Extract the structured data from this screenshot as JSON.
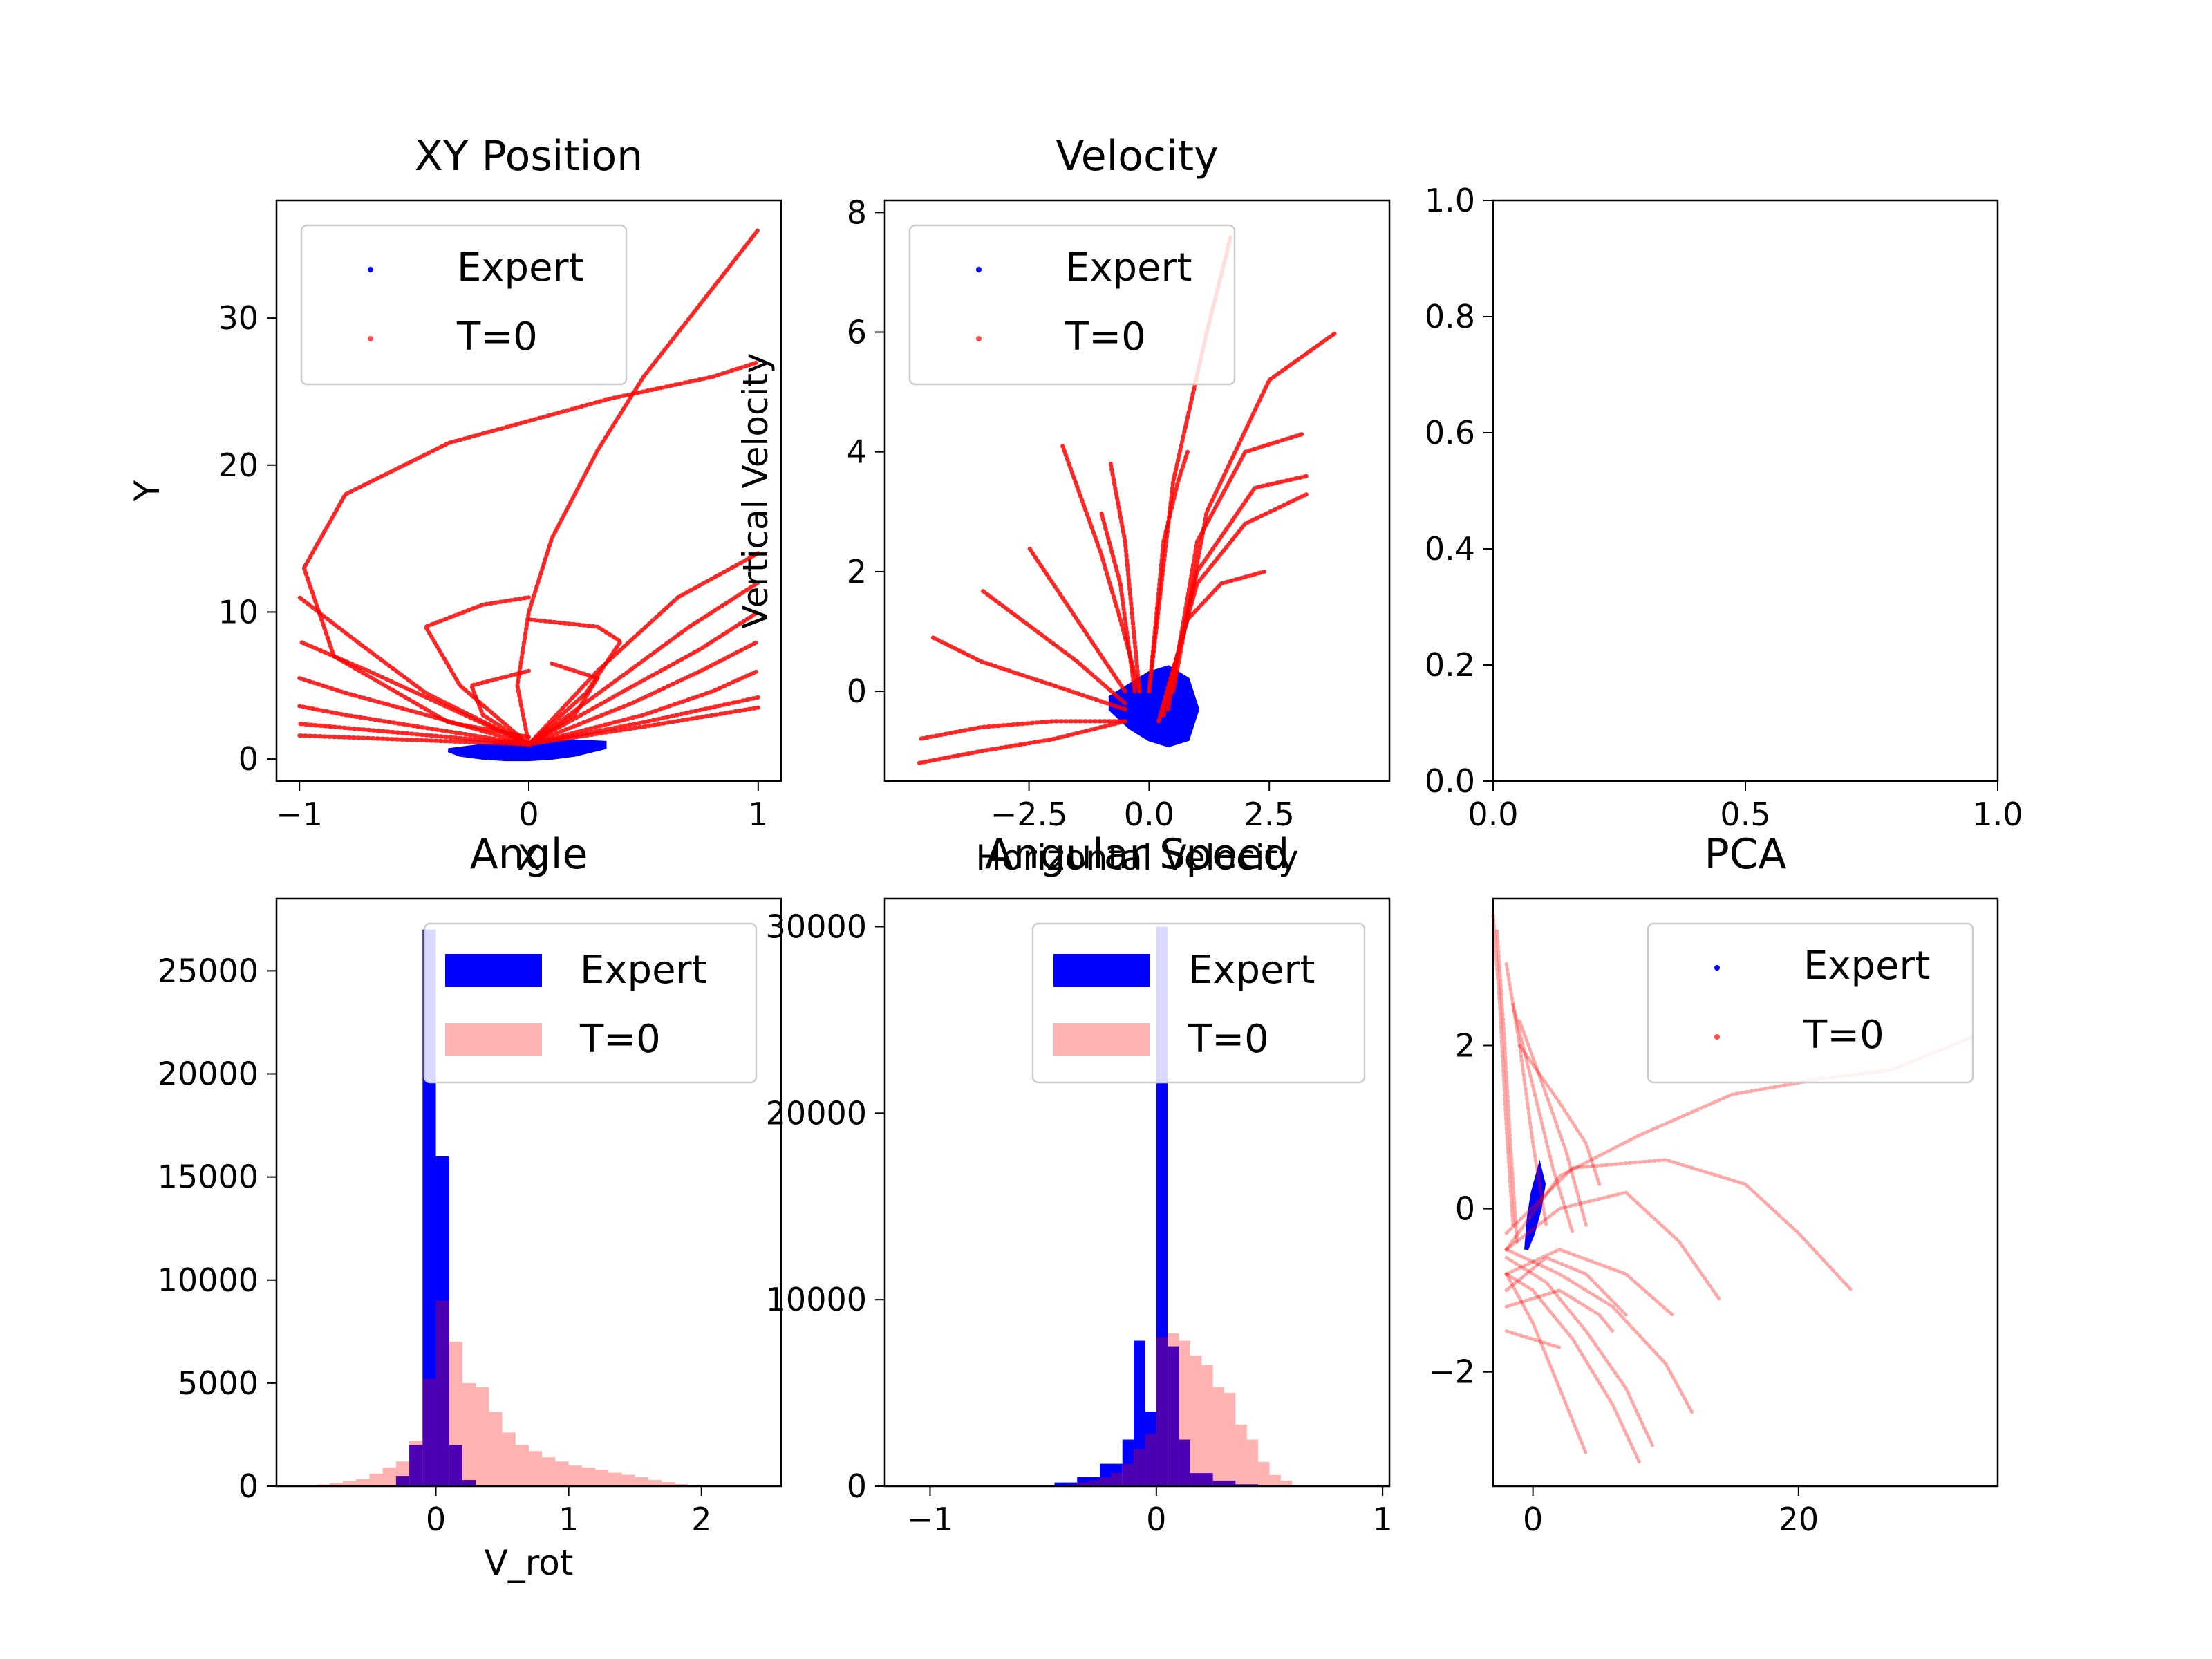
{
  "colors": {
    "expert": "#0000ff",
    "t0": "#ff0000",
    "t0_hist": "#ffb3b3",
    "overlap": "#5500aa"
  },
  "chart_data": [
    {
      "type": "scatter",
      "title": "XY Position",
      "xlabel": "X",
      "ylabel": "Y",
      "xlim": [
        -1.1,
        1.1
      ],
      "ylim": [
        -1.5,
        38
      ],
      "xticks": [
        -1,
        0,
        1
      ],
      "xtick_labels": [
        "−1",
        "0",
        "1"
      ],
      "yticks": [
        0,
        10,
        20,
        30
      ],
      "yticks_labels": [
        "0",
        "10",
        "20",
        "30"
      ],
      "legend": {
        "position": "upper-left",
        "entries": [
          "Expert",
          "T=0"
        ]
      },
      "expert": {
        "x": [
          -0.3,
          -0.2,
          -0.1,
          0,
          0.1,
          0.2,
          0.33,
          0.33,
          0.2,
          0,
          -0.2,
          -0.35
        ],
        "y": [
          0.3,
          0.1,
          0,
          0,
          0.1,
          0.3,
          0.8,
          1.1,
          1.2,
          1,
          0.9,
          0.6
        ]
      },
      "t0_curves": [
        {
          "x": [
            0,
            -0.35,
            -0.85,
            -0.98,
            -0.8,
            -0.35,
            0,
            0.35,
            0.8,
            1
          ],
          "y": [
            1.5,
            2.5,
            7,
            13,
            18,
            21.5,
            23,
            24.5,
            26,
            27
          ]
        },
        {
          "x": [
            0,
            -0.05,
            0,
            0.1,
            0.3,
            0.5,
            0.8,
            1
          ],
          "y": [
            1,
            5,
            10,
            15,
            21,
            26,
            32,
            36
          ]
        },
        {
          "x": [
            0,
            -0.45,
            -0.75,
            -1
          ],
          "y": [
            1,
            4.5,
            8,
            11
          ]
        },
        {
          "x": [
            0,
            -0.35,
            -0.7,
            -1
          ],
          "y": [
            1,
            3.5,
            6,
            8
          ]
        },
        {
          "x": [
            0,
            -0.4,
            -0.8,
            -1
          ],
          "y": [
            1,
            2.8,
            4.5,
            5.5
          ]
        },
        {
          "x": [
            0,
            -0.4,
            -0.8,
            -1
          ],
          "y": [
            1,
            2,
            3,
            3.6
          ]
        },
        {
          "x": [
            0,
            -0.5,
            -1
          ],
          "y": [
            1,
            1.7,
            2.4
          ]
        },
        {
          "x": [
            0,
            -0.5,
            -1
          ],
          "y": [
            1,
            1.3,
            1.6
          ]
        },
        {
          "x": [
            0,
            0.3,
            0.65,
            1
          ],
          "y": [
            1,
            6,
            11,
            14
          ]
        },
        {
          "x": [
            0,
            0.35,
            0.7,
            1
          ],
          "y": [
            1,
            5,
            9,
            12
          ]
        },
        {
          "x": [
            0,
            0.4,
            0.75,
            1
          ],
          "y": [
            1,
            4.5,
            7.5,
            10
          ]
        },
        {
          "x": [
            0,
            0.45,
            0.75,
            1
          ],
          "y": [
            1,
            3.8,
            6,
            8
          ]
        },
        {
          "x": [
            0,
            0.5,
            0.8,
            1
          ],
          "y": [
            1,
            3,
            4.6,
            6
          ]
        },
        {
          "x": [
            0,
            0.5,
            1
          ],
          "y": [
            1,
            2.5,
            4.2
          ]
        },
        {
          "x": [
            0,
            0.5,
            1
          ],
          "y": [
            1,
            2.2,
            3.5
          ]
        },
        {
          "x": [
            0,
            -0.3,
            -0.45,
            -0.2,
            0
          ],
          "y": [
            1,
            5,
            9,
            10.5,
            11
          ]
        },
        {
          "x": [
            0,
            0.25,
            0.4,
            0.3,
            0
          ],
          "y": [
            1,
            4.5,
            8,
            9,
            9.5
          ]
        },
        {
          "x": [
            0,
            -0.2,
            -0.25,
            0
          ],
          "y": [
            1,
            3,
            5,
            6
          ]
        },
        {
          "x": [
            0,
            0.2,
            0.3,
            0.1
          ],
          "y": [
            1,
            3,
            5.5,
            6.5
          ]
        }
      ]
    },
    {
      "type": "scatter",
      "title": "Velocity",
      "xlabel": "Horizontal Velocity",
      "ylabel": "Vertical Velocity",
      "xlim": [
        -5.5,
        5
      ],
      "ylim": [
        -1.5,
        8.2
      ],
      "xticks": [
        -2.5,
        0,
        2.5
      ],
      "xtick_labels": [
        "−2.5",
        "0.0",
        "2.5"
      ],
      "yticks": [
        0,
        2,
        4,
        6,
        8
      ],
      "yticks_labels": [
        "0",
        "2",
        "4",
        "6",
        "8"
      ],
      "legend": {
        "position": "upper-left",
        "entries": [
          "Expert",
          "T=0"
        ]
      },
      "expert": {
        "x": [
          -0.8,
          -0.4,
          0,
          0.4,
          0.8,
          1,
          0.8,
          0.4,
          0,
          -0.4,
          -0.8
        ],
        "y": [
          -0.3,
          -0.6,
          -0.8,
          -0.9,
          -0.8,
          -0.3,
          0.2,
          0.4,
          0.3,
          0.1,
          -0.1
        ]
      },
      "t0_curves": [
        {
          "x": [
            0,
            0.5,
            1.2,
            1.7
          ],
          "y": [
            0,
            3.5,
            6,
            7.6
          ]
        },
        {
          "x": [
            0.5,
            1.2,
            2.5,
            3.9
          ],
          "y": [
            0,
            3,
            5.2,
            6
          ]
        },
        {
          "x": [
            0.4,
            1,
            2,
            3.2
          ],
          "y": [
            -0.3,
            2.5,
            4,
            4.3
          ]
        },
        {
          "x": [
            0.3,
            1,
            2.2,
            3.3
          ],
          "y": [
            -0.4,
            2,
            3.4,
            3.6
          ]
        },
        {
          "x": [
            0.2,
            1,
            2,
            3.3
          ],
          "y": [
            -0.5,
            1.8,
            2.8,
            3.3
          ]
        },
        {
          "x": [
            0.2,
            0.8,
            1.5,
            2.4
          ],
          "y": [
            -0.5,
            1.2,
            1.8,
            2
          ]
        },
        {
          "x": [
            0,
            0.3,
            0.6,
            0.8
          ],
          "y": [
            0,
            2.5,
            3.5,
            4
          ]
        },
        {
          "x": [
            -0.2,
            -0.6,
            -1,
            -1.4,
            -1.8
          ],
          "y": [
            0,
            1.2,
            2.3,
            3.2,
            4.1
          ]
        },
        {
          "x": [
            -0.5,
            -1.5,
            -2.5
          ],
          "y": [
            0,
            1.2,
            2.4
          ]
        },
        {
          "x": [
            -0.5,
            -1.5,
            -2.5,
            -3.5
          ],
          "y": [
            -0.2,
            0.5,
            1.1,
            1.7
          ]
        },
        {
          "x": [
            -0.5,
            -2,
            -3.5,
            -4.5
          ],
          "y": [
            -0.3,
            0.1,
            0.5,
            0.9
          ]
        },
        {
          "x": [
            -0.5,
            -2,
            -3.5,
            -4.8
          ],
          "y": [
            -0.5,
            -0.5,
            -0.6,
            -0.8
          ]
        },
        {
          "x": [
            -0.5,
            -2,
            -3.5,
            -4.8
          ],
          "y": [
            -0.5,
            -0.8,
            -1,
            -1.2
          ]
        },
        {
          "x": [
            -0.2,
            -0.5,
            -0.8
          ],
          "y": [
            0,
            2.5,
            3.8
          ]
        },
        {
          "x": [
            -0.3,
            -0.6,
            -1
          ],
          "y": [
            0,
            1.8,
            3
          ]
        }
      ]
    },
    {
      "type": "scatter",
      "title": "",
      "xlim": [
        0,
        1
      ],
      "ylim": [
        0,
        1
      ],
      "xticks": [
        0,
        0.5,
        1
      ],
      "xtick_labels": [
        "0.0",
        "0.5",
        "1.0"
      ],
      "yticks": [
        0,
        0.2,
        0.4,
        0.6,
        0.8,
        1
      ],
      "yticks_labels": [
        "0.0",
        "0.2",
        "0.4",
        "0.6",
        "0.8",
        "1.0"
      ]
    },
    {
      "type": "bar",
      "title": "Angle",
      "xlabel": "V_rot",
      "xlim": [
        -1.2,
        2.6
      ],
      "ylim": [
        0,
        28500
      ],
      "xticks": [
        0,
        1,
        2
      ],
      "xtick_labels": [
        "0",
        "1",
        "2"
      ],
      "yticks": [
        0,
        5000,
        10000,
        15000,
        20000,
        25000
      ],
      "yticks_labels": [
        "0",
        "5000",
        "10000",
        "15000",
        "20000",
        "25000"
      ],
      "legend": {
        "position": "upper-right",
        "entries": [
          "Expert",
          "T=0"
        ]
      },
      "expert_hist": {
        "edges": [
          -0.3,
          -0.2,
          -0.1,
          0,
          0.1,
          0.2,
          0.3
        ],
        "counts": [
          500,
          2000,
          27000,
          16000,
          2000,
          300
        ]
      },
      "t0_hist": {
        "edges": [
          -1,
          -0.9,
          -0.8,
          -0.7,
          -0.6,
          -0.5,
          -0.4,
          -0.3,
          -0.2,
          -0.1,
          0,
          0.1,
          0.2,
          0.3,
          0.4,
          0.5,
          0.6,
          0.7,
          0.8,
          0.9,
          1,
          1.1,
          1.2,
          1.3,
          1.4,
          1.5,
          1.6,
          1.7,
          1.8,
          1.9,
          2
        ],
        "counts": [
          30,
          80,
          150,
          250,
          350,
          600,
          900,
          1200,
          2200,
          5200,
          9000,
          7000,
          5000,
          4800,
          3600,
          2600,
          2000,
          1700,
          1400,
          1200,
          1000,
          900,
          800,
          650,
          550,
          450,
          300,
          200,
          100,
          40
        ]
      }
    },
    {
      "type": "bar",
      "title": "Angular Speed",
      "xlim": [
        -1.2,
        1.03
      ],
      "ylim": [
        0,
        31500
      ],
      "xticks": [
        -1,
        0,
        1
      ],
      "xtick_labels": [
        "−1",
        "0",
        "1"
      ],
      "yticks": [
        0,
        10000,
        20000,
        30000
      ],
      "yticks_labels": [
        "0",
        "10000",
        "20000",
        "30000"
      ],
      "legend": {
        "position": "upper-right",
        "entries": [
          "Expert",
          "T=0"
        ]
      },
      "expert_hist": {
        "edges": [
          -0.45,
          -0.35,
          -0.25,
          -0.15,
          -0.1,
          -0.05,
          0,
          0.05,
          0.1,
          0.15,
          0.25,
          0.35,
          0.45
        ],
        "counts": [
          200,
          500,
          1200,
          2500,
          7800,
          4000,
          30000,
          7500,
          2500,
          700,
          300,
          100
        ]
      },
      "t0_hist": {
        "edges": [
          -0.4,
          -0.35,
          -0.3,
          -0.25,
          -0.2,
          -0.15,
          -0.1,
          -0.05,
          0,
          0.05,
          0.1,
          0.15,
          0.2,
          0.25,
          0.3,
          0.35,
          0.4,
          0.45,
          0.5,
          0.55,
          0.6
        ],
        "counts": [
          100,
          200,
          300,
          500,
          700,
          1200,
          2000,
          2800,
          8000,
          8200,
          7800,
          7000,
          6500,
          5300,
          5000,
          3300,
          2500,
          1300,
          600,
          300
        ]
      }
    },
    {
      "type": "scatter",
      "title": "PCA",
      "xlim": [
        -3,
        35
      ],
      "ylim": [
        -3.4,
        3.8
      ],
      "xticks": [
        0,
        20
      ],
      "xtick_labels": [
        "0",
        "20"
      ],
      "yticks": [
        -2,
        0,
        2
      ],
      "yticks_labels": [
        "−2",
        "0",
        "2"
      ],
      "legend": {
        "position": "upper-right",
        "entries": [
          "Expert",
          "T=0"
        ]
      },
      "expert": {
        "x": [
          -0.5,
          0,
          0.5,
          0.8,
          0.5,
          0,
          -0.3
        ],
        "y": [
          -0.5,
          -0.3,
          0,
          0.3,
          0.5,
          0.2,
          -0.1
        ]
      },
      "t0_curves": [
        {
          "x": [
            -2,
            2,
            8,
            15,
            22,
            27,
            33
          ],
          "y": [
            -0.5,
            0.4,
            0.9,
            1.4,
            1.6,
            1.7,
            2.1
          ]
        },
        {
          "x": [
            -2,
            3,
            10,
            16,
            20,
            24
          ],
          "y": [
            -0.3,
            0.5,
            0.6,
            0.3,
            -0.3,
            -1
          ]
        },
        {
          "x": [
            -2,
            2,
            7,
            11,
            14
          ],
          "y": [
            -0.5,
            0,
            0.2,
            -0.4,
            -1.1
          ]
        },
        {
          "x": [
            -2,
            2,
            7,
            10.5
          ],
          "y": [
            -0.8,
            -0.5,
            -0.8,
            -1.3
          ]
        },
        {
          "x": [
            -2,
            1,
            4,
            7
          ],
          "y": [
            -1,
            -0.6,
            -0.8,
            -1.3
          ]
        },
        {
          "x": [
            -2,
            2,
            5,
            6
          ],
          "y": [
            -1.2,
            -1,
            -1.3,
            -1.5
          ]
        },
        {
          "x": [
            -2,
            0,
            2
          ],
          "y": [
            -1.5,
            -1.6,
            -1.7
          ]
        },
        {
          "x": [
            -3,
            -2.5,
            -2,
            -1.5
          ],
          "y": [
            3.6,
            2.5,
            1,
            -0.2
          ]
        },
        {
          "x": [
            -2.7,
            -2.2,
            -1.7,
            -1.2
          ],
          "y": [
            3.4,
            2.2,
            0.8,
            -0.4
          ]
        },
        {
          "x": [
            -2,
            -1,
            0,
            1
          ],
          "y": [
            3,
            2,
            0.8,
            -0.2
          ]
        },
        {
          "x": [
            -1.5,
            0,
            1.5,
            3
          ],
          "y": [
            2.5,
            1.5,
            0.5,
            -0.3
          ]
        },
        {
          "x": [
            -1,
            1,
            2.5,
            4
          ],
          "y": [
            2.3,
            1.4,
            0.7,
            -0.2
          ]
        },
        {
          "x": [
            -1,
            2,
            4,
            5
          ],
          "y": [
            2,
            1.3,
            0.8,
            0.3
          ]
        },
        {
          "x": [
            -2,
            0,
            3,
            6,
            8
          ],
          "y": [
            -0.8,
            -1,
            -1.6,
            -2.4,
            -3.1
          ]
        },
        {
          "x": [
            -2,
            1,
            4,
            7,
            9
          ],
          "y": [
            -0.6,
            -0.9,
            -1.5,
            -2.2,
            -2.9
          ]
        },
        {
          "x": [
            -2,
            2,
            6,
            10,
            12
          ],
          "y": [
            -0.5,
            -0.8,
            -1.2,
            -1.9,
            -2.5
          ]
        },
        {
          "x": [
            -2,
            0,
            2,
            4
          ],
          "y": [
            -0.8,
            -1.4,
            -2.2,
            -3
          ]
        }
      ]
    }
  ]
}
